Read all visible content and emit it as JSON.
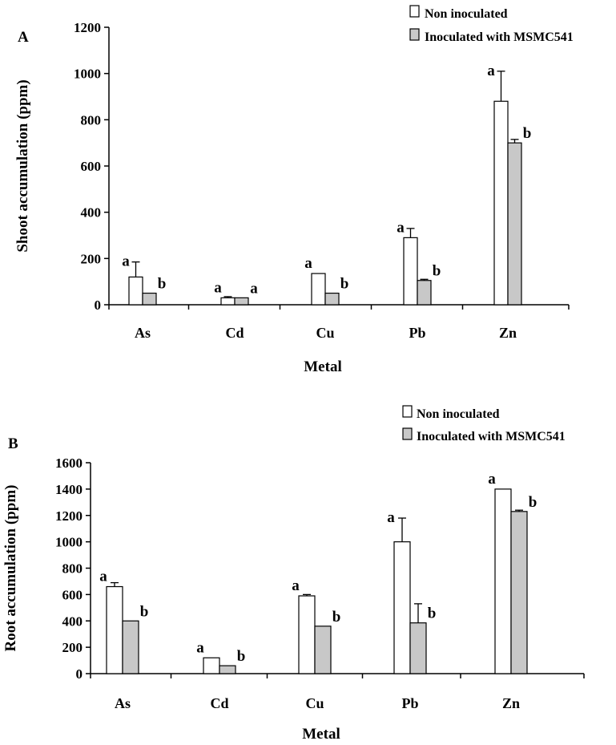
{
  "chart_data": [
    {
      "panel": "A",
      "type": "bar",
      "xlabel": "Metal",
      "ylabel": "Shoot accumulation (ppm)",
      "ylim": [
        0,
        1200
      ],
      "yticks": [
        "0",
        "200",
        "400",
        "600",
        "800",
        "1000",
        "1200"
      ],
      "categories": [
        "As",
        "Cd",
        "Cu",
        "Pb",
        "Zn"
      ],
      "legend_position": "top-right",
      "series": [
        {
          "name": "Non inoculated",
          "color": "#ffffff",
          "values": [
            120,
            30,
            135,
            290,
            880
          ],
          "errors": [
            65,
            5,
            0,
            40,
            130
          ],
          "letters": [
            "a",
            "a",
            "a",
            "a",
            "a"
          ]
        },
        {
          "name": "Inoculated with MSMC541",
          "color": "#c8c8c8",
          "values": [
            50,
            30,
            50,
            105,
            700
          ],
          "errors": [
            0,
            0,
            0,
            5,
            15
          ],
          "letters": [
            "b",
            "a",
            "b",
            "b",
            "b"
          ]
        }
      ]
    },
    {
      "panel": "B",
      "type": "bar",
      "xlabel": "Metal",
      "ylabel": "Root accumulation (ppm)",
      "ylim": [
        0,
        1600
      ],
      "yticks": [
        "0",
        "200",
        "400",
        "600",
        "800",
        "1000",
        "1200",
        "1400",
        "1600"
      ],
      "categories": [
        "As",
        "Cd",
        "Cu",
        "Pb",
        "Zn"
      ],
      "legend_position": "top-right",
      "series": [
        {
          "name": "Non inoculated",
          "color": "#ffffff",
          "values": [
            660,
            120,
            590,
            1000,
            1400
          ],
          "errors": [
            30,
            0,
            10,
            180,
            0
          ],
          "letters": [
            "a",
            "a",
            "a",
            "a",
            "a"
          ]
        },
        {
          "name": "Inoculated with MSMC541",
          "color": "#c8c8c8",
          "values": [
            400,
            60,
            360,
            385,
            1230
          ],
          "errors": [
            0,
            0,
            0,
            145,
            10
          ],
          "letters": [
            "b",
            "b",
            "b",
            "b",
            "b"
          ]
        }
      ]
    }
  ]
}
